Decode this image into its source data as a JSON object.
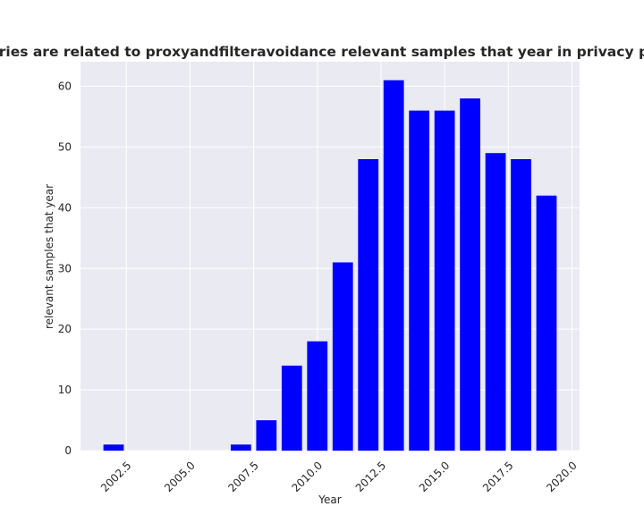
{
  "chart_data": {
    "type": "bar",
    "title": "categories are related to proxyandfilteravoidance relevant samples that year in privacy policies",
    "xlabel": "Year",
    "ylabel": "relevant samples that year",
    "x": [
      2002,
      2003,
      2004,
      2005,
      2006,
      2007,
      2008,
      2009,
      2010,
      2011,
      2012,
      2013,
      2014,
      2015,
      2016,
      2017,
      2018,
      2019
    ],
    "values": [
      1,
      0,
      0,
      0,
      0,
      1,
      5,
      14,
      18,
      31,
      48,
      61,
      56,
      56,
      58,
      49,
      48,
      42
    ],
    "xlim": [
      2000.7,
      2020.3
    ],
    "ylim": [
      0,
      64.05
    ],
    "xticks": [
      2002.5,
      2005.0,
      2007.5,
      2010.0,
      2012.5,
      2015.0,
      2017.5,
      2020.0
    ],
    "xtick_labels": [
      "2002.5",
      "2005.0",
      "2007.5",
      "2010.0",
      "2012.5",
      "2015.0",
      "2017.5",
      "2020.0"
    ],
    "yticks": [
      0,
      10,
      20,
      30,
      40,
      50,
      60
    ],
    "ytick_labels": [
      "0",
      "10",
      "20",
      "30",
      "40",
      "50",
      "60"
    ],
    "bar_width": 0.8,
    "bar_color": "#0000ff",
    "plot_background": "#eaeaf2",
    "grid_color": "#ffffff",
    "grid": true,
    "legend": false
  }
}
